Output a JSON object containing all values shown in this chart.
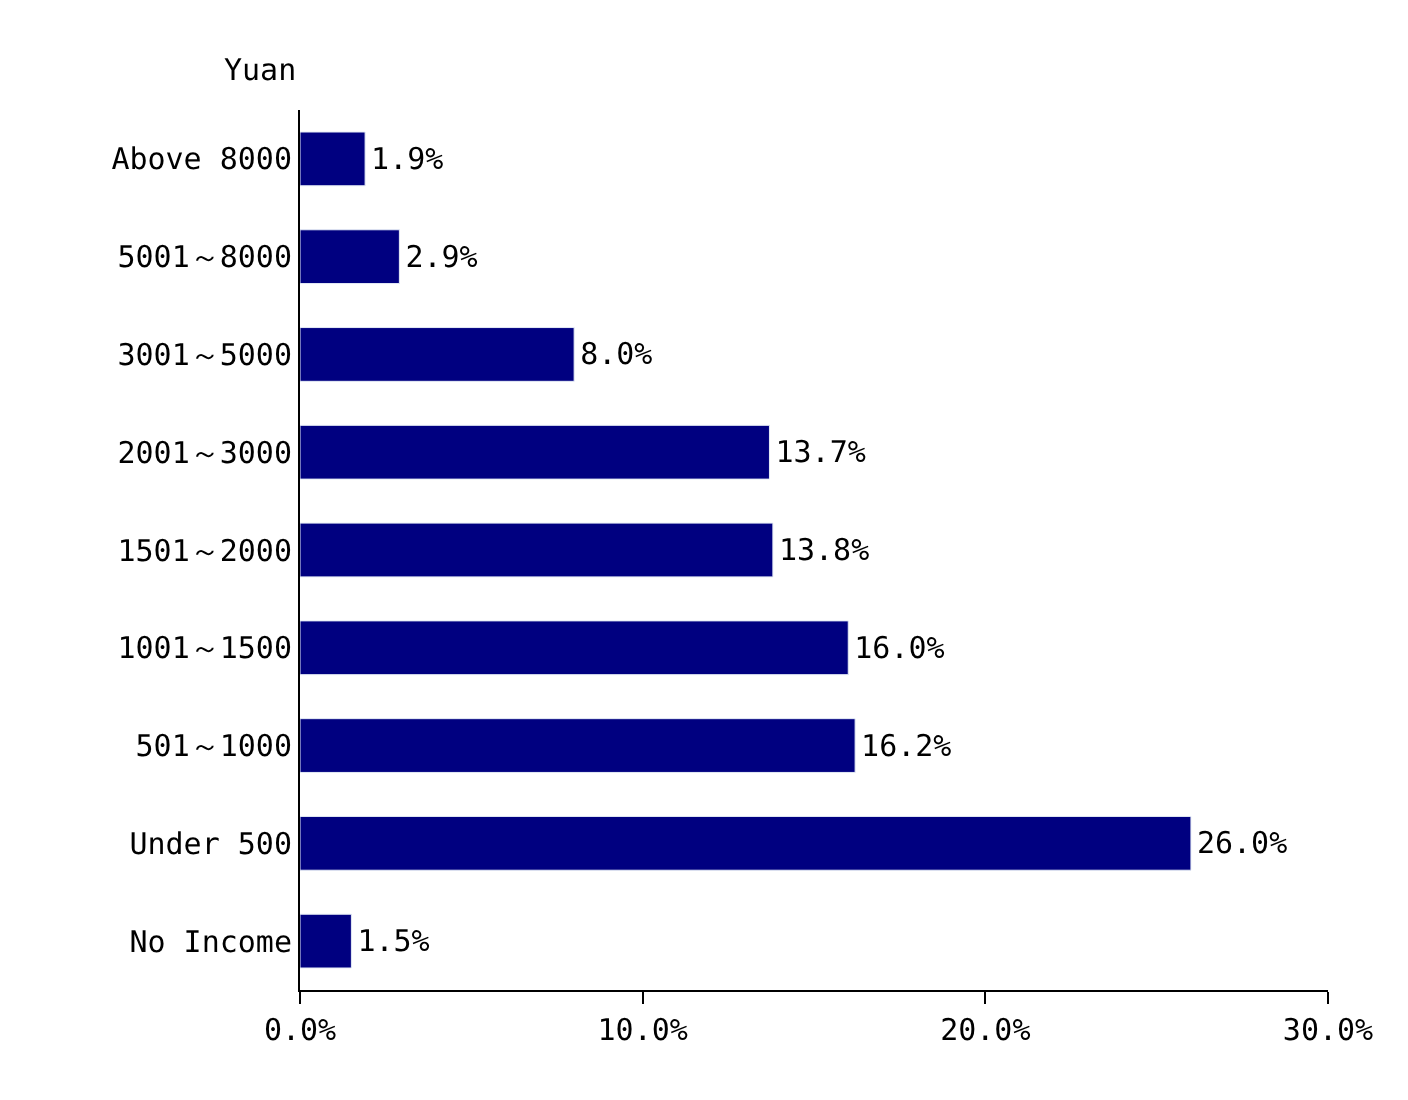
{
  "chart_data": {
    "type": "bar",
    "orientation": "horizontal",
    "ylabel": "Yuan",
    "categories": [
      "Above 8000",
      "5001～8000",
      "3001～5000",
      "2001～3000",
      "1501～2000",
      "1001～1500",
      "501～1000",
      "Under 500",
      "No Income"
    ],
    "values": [
      1.9,
      2.9,
      8.0,
      13.7,
      13.8,
      16.0,
      16.2,
      26.0,
      1.5
    ],
    "value_labels": [
      "1.9%",
      "2.9%",
      "8.0%",
      "13.7%",
      "13.8%",
      "16.0%",
      "16.2%",
      "26.0%",
      "1.5%"
    ],
    "color": "#000080",
    "xlim": [
      0,
      30
    ],
    "xticks": [
      {
        "value": 0,
        "label": "0.0%"
      },
      {
        "value": 10,
        "label": "10.0%"
      },
      {
        "value": 20,
        "label": "20.0%"
      },
      {
        "value": 30,
        "label": "30.0%"
      }
    ],
    "legend": false
  }
}
